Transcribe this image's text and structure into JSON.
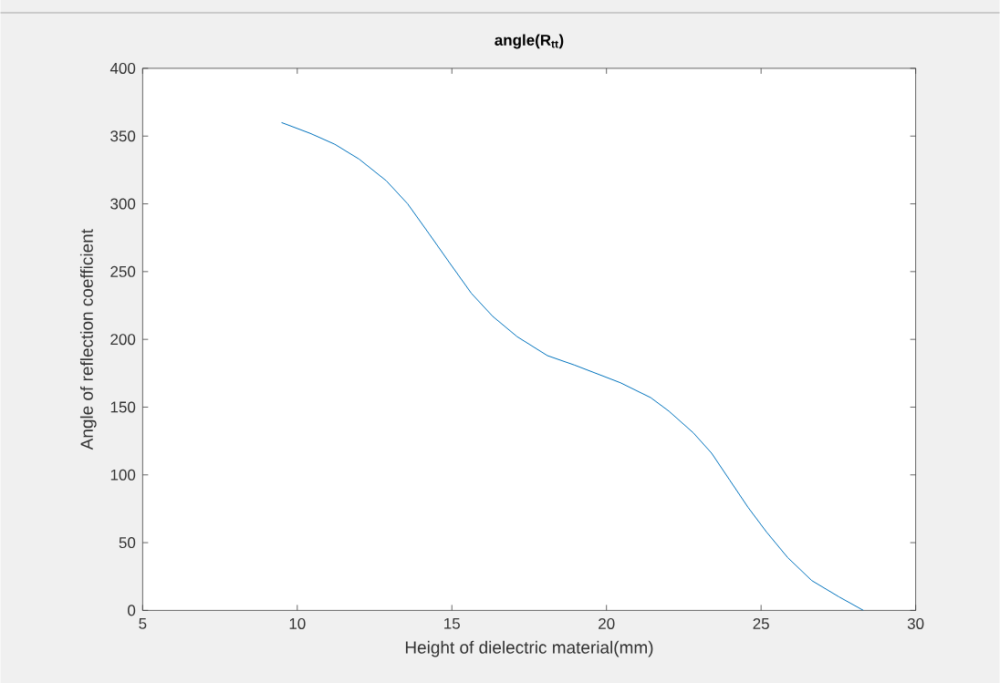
{
  "chart_data": {
    "type": "line",
    "title": "angle(R$_{tt}$)",
    "xlabel": "Height of dielectric material(mm)",
    "ylabel": "Angle of reflection coefficient",
    "xlim": [
      5,
      30
    ],
    "xticks": [
      5,
      10,
      15,
      20,
      25,
      30
    ],
    "ylim": [
      0,
      400
    ],
    "yticks": [
      0,
      50,
      100,
      150,
      200,
      250,
      300,
      350,
      400
    ],
    "grid": false,
    "series": [
      {
        "color": "#0072bd",
        "x": [
          9.49,
          10.42,
          11.21,
          12.0,
          12.88,
          13.57,
          14.26,
          14.94,
          15.63,
          16.32,
          17.11,
          18.09,
          18.97,
          20.45,
          21.43,
          22.02,
          22.81,
          23.4,
          23.99,
          24.58,
          25.17,
          25.86,
          26.64,
          27.52,
          28.31
        ],
        "values": [
          360,
          352,
          344,
          333,
          317,
          300,
          278,
          256,
          234,
          217,
          202,
          188,
          181,
          168,
          157,
          147,
          131,
          116,
          96,
          76,
          58,
          39,
          22,
          10,
          0
        ]
      }
    ]
  }
}
